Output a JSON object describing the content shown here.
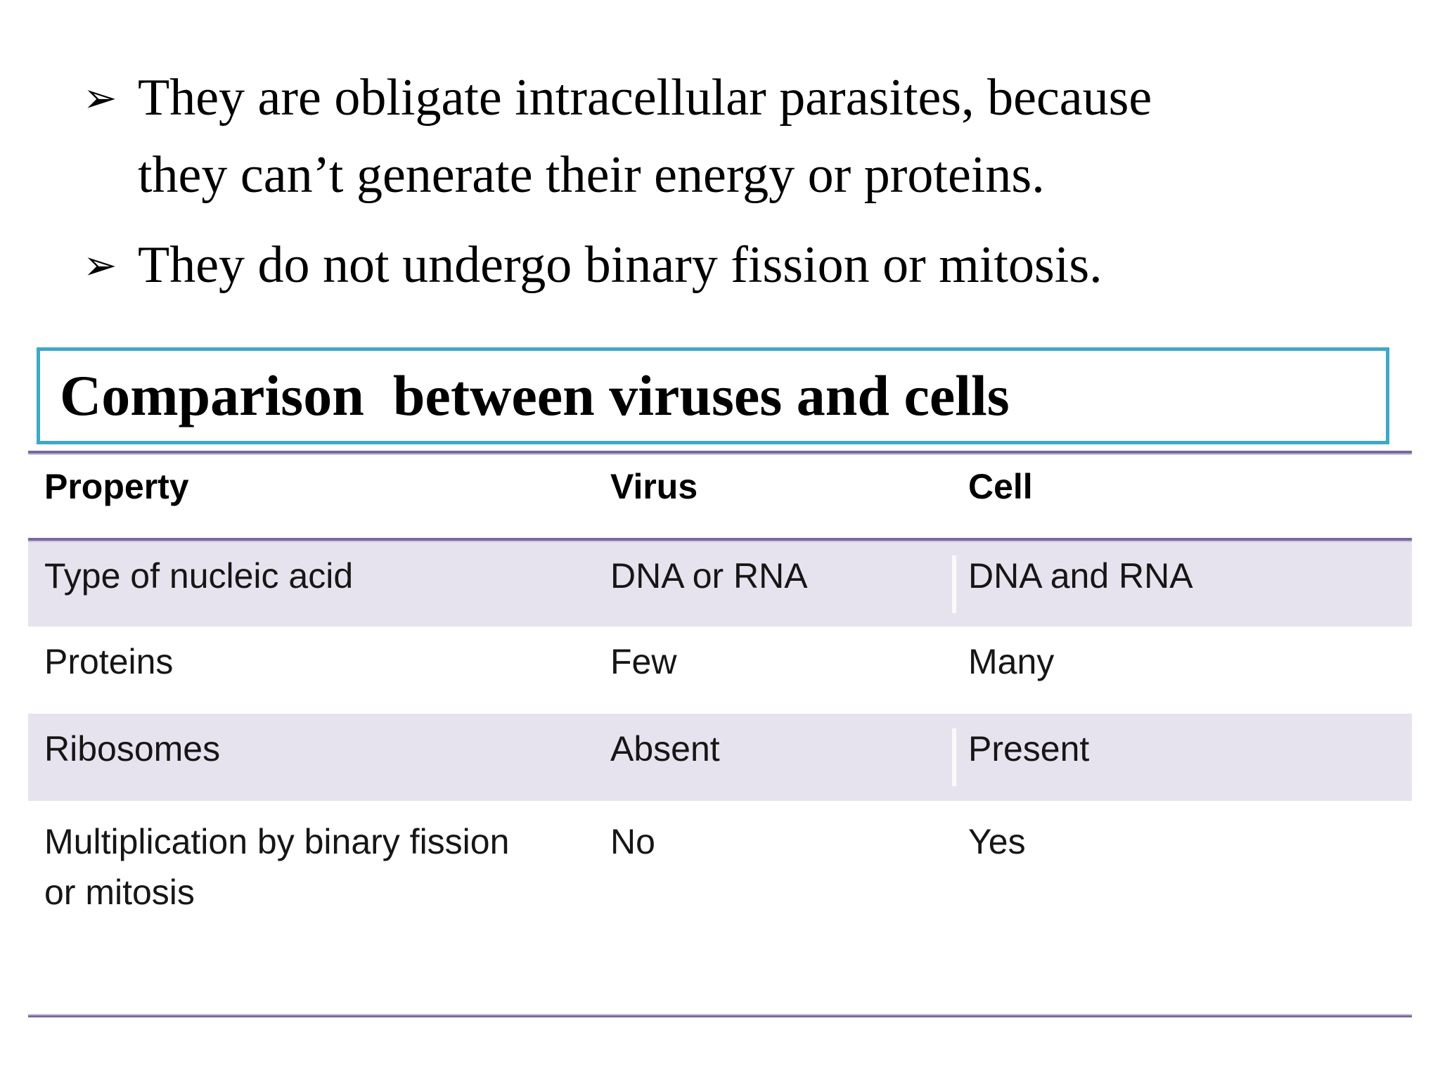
{
  "slide": {
    "bullets": [
      {
        "marker": "➢",
        "text": "They are obligate intracellular parasites, because\nthey can’t generate their energy or proteins."
      },
      {
        "marker": "➢",
        "text": "They do not undergo binary fission or mitosis."
      }
    ],
    "section_title": "Comparison  between viruses and cells",
    "comparison_table": {
      "headers": [
        "Property",
        "Virus",
        "Cell"
      ],
      "rows": [
        {
          "property": "Type of nucleic acid",
          "virus": "DNA or RNA",
          "cell": "DNA and RNA"
        },
        {
          "property": "Proteins",
          "virus": "Few",
          "cell": "Many"
        },
        {
          "property": "Ribosomes",
          "virus": "Absent",
          "cell": "Present"
        },
        {
          "property": "Multiplication by binary fission\nor mitosis",
          "virus": "No",
          "cell": "Yes"
        }
      ],
      "shaded_row_indices": [
        0,
        2
      ]
    },
    "colors": {
      "accent_teal": "#3FA8C7",
      "accent_purple": "#7A68A0",
      "row_shade": "#E7E3EE"
    }
  }
}
